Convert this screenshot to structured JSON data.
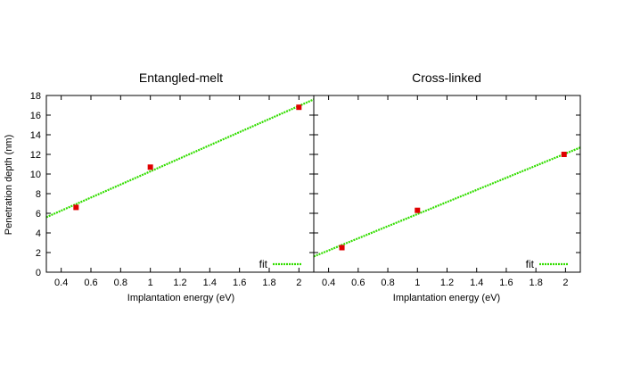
{
  "chart_data": [
    {
      "type": "scatter",
      "title": "Entangled-melt",
      "xlabel": "Implantation energy (eV)",
      "ylabel": "Penetration depth (nm)",
      "xlim": [
        0.3,
        2.1
      ],
      "ylim": [
        0,
        18
      ],
      "xticks": [
        0.4,
        0.6,
        0.8,
        1,
        1.2,
        1.4,
        1.6,
        1.8,
        2
      ],
      "yticks": [
        0,
        2,
        4,
        6,
        8,
        10,
        12,
        14,
        16,
        18
      ],
      "xtick_labels": [
        "0.4",
        "0.6",
        "0.8",
        "1",
        "1.2",
        "1.4",
        "1.6",
        "1.8",
        "2"
      ],
      "ytick_labels": [
        "0",
        "2",
        "4",
        "6",
        "8",
        "10",
        "12",
        "14",
        "16",
        "18"
      ],
      "points": {
        "x": [
          0.5,
          1.0,
          2.0
        ],
        "y": [
          6.6,
          10.7,
          16.8
        ],
        "color": "#e00000"
      },
      "fit": {
        "name": "fit",
        "x": [
          0.3,
          2.1
        ],
        "y": [
          5.6,
          17.6
        ],
        "color": "#33dd00"
      },
      "legend": "bottom-right",
      "grid": false
    },
    {
      "type": "scatter",
      "title": "Cross-linked",
      "xlabel": "Implantation energy (eV)",
      "ylabel": "",
      "xlim": [
        0.3,
        2.1
      ],
      "ylim": [
        0,
        18
      ],
      "xticks": [
        0.4,
        0.6,
        0.8,
        1,
        1.2,
        1.4,
        1.6,
        1.8,
        2
      ],
      "yticks": [
        0,
        2,
        4,
        6,
        8,
        10,
        12,
        14,
        16,
        18
      ],
      "xtick_labels": [
        "0.4",
        "0.6",
        "0.8",
        "1",
        "1.2",
        "1.4",
        "1.6",
        "1.8",
        "2"
      ],
      "ytick_labels": [],
      "points": {
        "x": [
          0.49,
          1.0,
          1.99
        ],
        "y": [
          2.5,
          6.3,
          12.0
        ],
        "color": "#e00000"
      },
      "fit": {
        "name": "fit",
        "x": [
          0.3,
          2.1
        ],
        "y": [
          1.6,
          12.7
        ],
        "color": "#33dd00"
      },
      "legend": "bottom-right",
      "grid": false
    }
  ]
}
